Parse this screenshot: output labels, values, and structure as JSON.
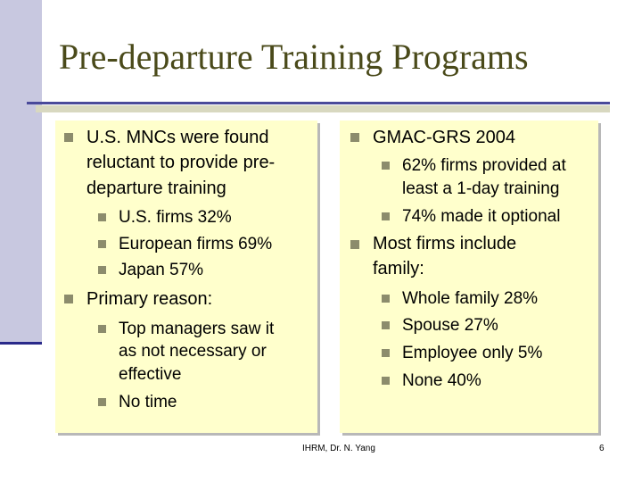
{
  "slide": {
    "title": "Pre-departure Training Programs",
    "left_column": {
      "point1": {
        "lines": [
          "U.S. MNCs were found",
          "reluctant to provide pre-",
          "departure training"
        ],
        "subpoints": [
          "U.S. firms 32%",
          "European firms 69%",
          "Japan 57%"
        ]
      },
      "point2": {
        "text": "Primary reason:",
        "subpoints": [
          {
            "lines": [
              "Top managers saw it",
              "as not necessary or",
              "effective"
            ]
          },
          {
            "lines": [
              "No time"
            ]
          }
        ]
      }
    },
    "right_column": {
      "point1": {
        "text": "GMAC-GRS 2004",
        "subpoints": [
          {
            "lines": [
              "62% firms provided at",
              "least a 1-day training"
            ]
          },
          {
            "lines": [
              "74% made it optional"
            ]
          }
        ]
      },
      "point2": {
        "lines": [
          "Most firms include",
          "family:"
        ],
        "subpoints": [
          "Whole family 28%",
          "Spouse 27%",
          "Employee only 5%",
          "None 40%"
        ]
      }
    },
    "footer": {
      "author": "IHRM, Dr. N. Yang",
      "page_number": "6"
    }
  },
  "colors": {
    "title": "#4a4a1a",
    "panel_background": "#ffffcc",
    "bullet": "#8c8c6c",
    "accent_bar": "#c8c8e0",
    "rule": "#4a4a9a"
  }
}
